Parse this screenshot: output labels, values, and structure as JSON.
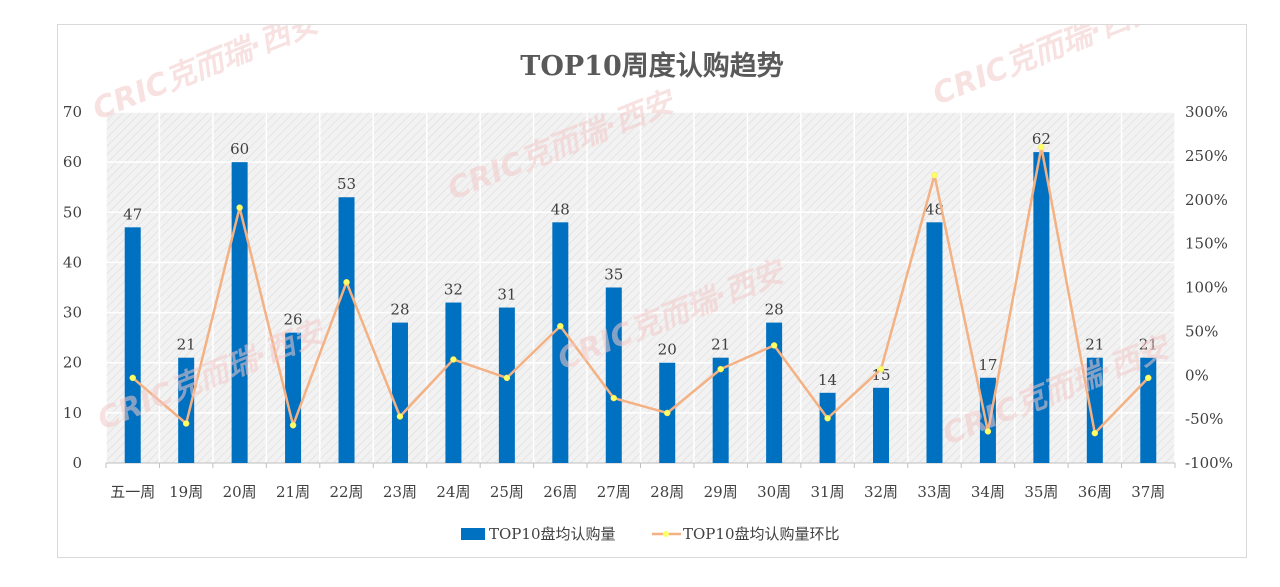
{
  "chart_data": {
    "type": "bar",
    "title": "TOP10周度认购趋势",
    "categories": [
      "五一周",
      "19周",
      "20周",
      "21周",
      "22周",
      "23周",
      "24周",
      "25周",
      "26周",
      "27周",
      "28周",
      "29周",
      "30周",
      "31周",
      "32周",
      "33周",
      "34周",
      "35周",
      "36周",
      "37周"
    ],
    "series": [
      {
        "name": "TOP10盘均认购量",
        "type": "bar",
        "axis": "left",
        "values": [
          47,
          21,
          60,
          26,
          53,
          28,
          32,
          31,
          48,
          35,
          20,
          21,
          28,
          14,
          15,
          48,
          17,
          62,
          21,
          21
        ],
        "color": "#0070C0"
      },
      {
        "name": "TOP10盘均认购量环比",
        "type": "line",
        "axis": "right",
        "values": [
          -3,
          -55,
          191,
          -57,
          106,
          -47,
          18,
          -3,
          56,
          -26,
          -43,
          7,
          34,
          -49,
          7,
          228,
          -64,
          260,
          -66,
          -3
        ],
        "color": "#F4B183",
        "marker_color": "#FFFF66"
      }
    ],
    "y_left": {
      "min": 0,
      "max": 70,
      "ticks": [
        0,
        10,
        20,
        30,
        40,
        50,
        60,
        70
      ]
    },
    "y_right": {
      "min": -100,
      "max": 300,
      "ticks": [
        "-100%",
        "-50%",
        "0%",
        "50%",
        "100%",
        "150%",
        "200%",
        "250%",
        "300%"
      ]
    },
    "legend_position": "bottom",
    "grid": true
  },
  "watermark": "CRIC克而瑞·西安"
}
